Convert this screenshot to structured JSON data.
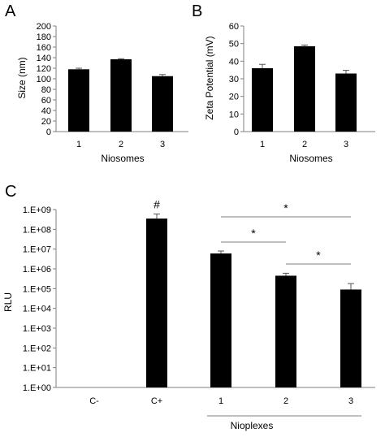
{
  "colors": {
    "bar": "#000000",
    "axis": "#7f7f7f",
    "error": "#555555",
    "bracket": "#7f7f7f"
  },
  "chart_data": [
    {
      "panel": "A",
      "type": "bar",
      "categories": [
        "1",
        "2",
        "3"
      ],
      "values": [
        118,
        137,
        105
      ],
      "errors": [
        2,
        1,
        3
      ],
      "xlabel": "Niosomes",
      "ylabel": "Size (nm)",
      "ylim": [
        0,
        200
      ],
      "yticks": [
        "0",
        "20",
        "40",
        "60",
        "80",
        "100",
        "120",
        "140",
        "160",
        "180",
        "200"
      ],
      "grid": false
    },
    {
      "panel": "B",
      "type": "bar",
      "categories": [
        "1",
        "2",
        "3"
      ],
      "values": [
        36,
        48.5,
        33
      ],
      "errors": [
        2.2,
        0.7,
        1.8
      ],
      "xlabel": "Niosomes",
      "ylabel": "Zeta Potential (mV)",
      "ylim": [
        0,
        60
      ],
      "yticks": [
        "0",
        "10",
        "20",
        "30",
        "40",
        "50",
        "60"
      ],
      "grid": false
    },
    {
      "panel": "C",
      "type": "bar",
      "scale": "log",
      "categories": [
        "C-",
        "C+",
        "1",
        "2",
        "3"
      ],
      "values": [
        null,
        350000000.0,
        6000000.0,
        450000.0,
        90000.0
      ],
      "err_upper": [
        null,
        600000000.0,
        8000000.0,
        600000.0,
        180000.0
      ],
      "xlabel": "",
      "ylabel": "RLU",
      "ylim": [
        1,
        1000000000.0
      ],
      "yticks": [
        "1.E+00",
        "1.E+01",
        "1.E+02",
        "1.E+03",
        "1.E+04",
        "1.E+05",
        "1.E+06",
        "1.E+07",
        "1.E+08",
        "1.E+09"
      ],
      "group_label": "Nioplexes",
      "bar_annotation": {
        "category": "C+",
        "text": "#"
      },
      "significance": [
        {
          "from": "1",
          "to": "3",
          "text": "*"
        },
        {
          "from": "1",
          "to": "2",
          "text": "*"
        },
        {
          "from": "2",
          "to": "3",
          "text": "*"
        }
      ],
      "grid": false
    }
  ]
}
